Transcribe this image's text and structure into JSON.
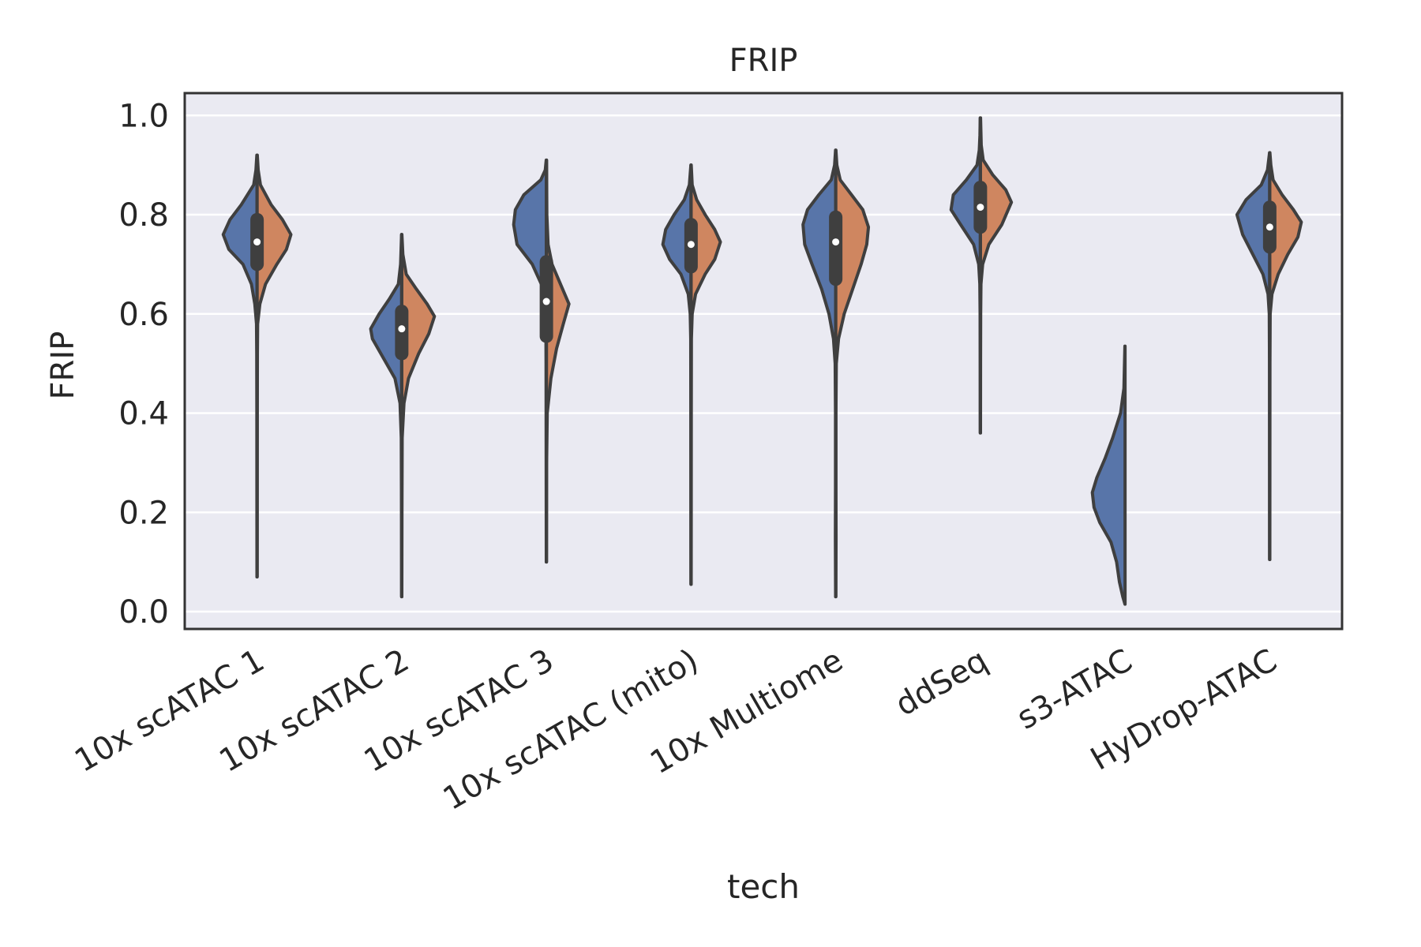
{
  "chart_data": {
    "type": "violin",
    "title": "FRIP",
    "xlabel": "tech",
    "ylabel": "FRIP",
    "ylim": [
      -0.035,
      1.045
    ],
    "yticks": [
      0.0,
      0.2,
      0.4,
      0.6,
      0.8,
      1.0
    ],
    "grid": "horizontal",
    "split": true,
    "categories": [
      "10x scATAC 1",
      "10x scATAC 2",
      "10x scATAC 3",
      "10x scATAC (mito)",
      "10x Multiome",
      "ddSeq",
      "s3-ATAC",
      "HyDrop-ATAC"
    ],
    "colors": {
      "left": "#5875a9",
      "right": "#cf8660",
      "outline": "#3f3f3f",
      "box": "#3f3f3f",
      "median": "#ffffff",
      "panel": "#eaeaf2",
      "grid": "#ffffff"
    },
    "violins": [
      {
        "category": "10x scATAC 1",
        "min": 0.07,
        "max": 0.92,
        "q1": 0.7,
        "median": 0.745,
        "q3": 0.79,
        "left": [
          [
            0.07,
            0.002
          ],
          [
            0.2,
            0.003
          ],
          [
            0.4,
            0.004
          ],
          [
            0.52,
            0.006
          ],
          [
            0.58,
            0.01
          ],
          [
            0.62,
            0.04
          ],
          [
            0.66,
            0.1
          ],
          [
            0.7,
            0.25
          ],
          [
            0.73,
            0.5
          ],
          [
            0.76,
            0.6
          ],
          [
            0.79,
            0.48
          ],
          [
            0.82,
            0.28
          ],
          [
            0.86,
            0.06
          ],
          [
            0.89,
            0.02
          ],
          [
            0.92,
            0.004
          ]
        ],
        "right": [
          [
            0.07,
            0.002
          ],
          [
            0.2,
            0.003
          ],
          [
            0.4,
            0.004
          ],
          [
            0.52,
            0.006
          ],
          [
            0.58,
            0.01
          ],
          [
            0.62,
            0.05
          ],
          [
            0.66,
            0.15
          ],
          [
            0.7,
            0.35
          ],
          [
            0.73,
            0.52
          ],
          [
            0.76,
            0.6
          ],
          [
            0.79,
            0.45
          ],
          [
            0.82,
            0.25
          ],
          [
            0.86,
            0.06
          ],
          [
            0.89,
            0.02
          ],
          [
            0.92,
            0.004
          ]
        ]
      },
      {
        "category": "10x scATAC 2",
        "min": 0.03,
        "max": 0.76,
        "q1": 0.52,
        "median": 0.57,
        "q3": 0.605,
        "left": [
          [
            0.03,
            0.002
          ],
          [
            0.2,
            0.004
          ],
          [
            0.35,
            0.008
          ],
          [
            0.42,
            0.03
          ],
          [
            0.47,
            0.12
          ],
          [
            0.51,
            0.32
          ],
          [
            0.55,
            0.52
          ],
          [
            0.57,
            0.55
          ],
          [
            0.6,
            0.4
          ],
          [
            0.63,
            0.22
          ],
          [
            0.66,
            0.06
          ],
          [
            0.7,
            0.02
          ],
          [
            0.76,
            0.003
          ]
        ],
        "right": [
          [
            0.03,
            0.002
          ],
          [
            0.2,
            0.004
          ],
          [
            0.35,
            0.008
          ],
          [
            0.42,
            0.04
          ],
          [
            0.47,
            0.12
          ],
          [
            0.52,
            0.3
          ],
          [
            0.56,
            0.48
          ],
          [
            0.595,
            0.58
          ],
          [
            0.62,
            0.45
          ],
          [
            0.65,
            0.26
          ],
          [
            0.68,
            0.08
          ],
          [
            0.72,
            0.02
          ],
          [
            0.76,
            0.003
          ]
        ]
      },
      {
        "category": "10x scATAC 3",
        "min": 0.1,
        "max": 0.91,
        "q1": 0.555,
        "median": 0.625,
        "q3": 0.705,
        "left": [
          [
            0.1,
            0.002
          ],
          [
            0.3,
            0.004
          ],
          [
            0.5,
            0.006
          ],
          [
            0.6,
            0.01
          ],
          [
            0.65,
            0.05
          ],
          [
            0.7,
            0.25
          ],
          [
            0.74,
            0.52
          ],
          [
            0.78,
            0.58
          ],
          [
            0.81,
            0.55
          ],
          [
            0.84,
            0.4
          ],
          [
            0.87,
            0.1
          ],
          [
            0.89,
            0.02
          ],
          [
            0.91,
            0.003
          ]
        ],
        "right": [
          [
            0.1,
            0.002
          ],
          [
            0.3,
            0.004
          ],
          [
            0.4,
            0.015
          ],
          [
            0.47,
            0.08
          ],
          [
            0.53,
            0.18
          ],
          [
            0.58,
            0.3
          ],
          [
            0.62,
            0.4
          ],
          [
            0.66,
            0.25
          ],
          [
            0.7,
            0.1
          ],
          [
            0.74,
            0.03
          ],
          [
            0.8,
            0.008
          ],
          [
            0.91,
            0.003
          ]
        ]
      },
      {
        "category": "10x scATAC (mito)",
        "min": 0.055,
        "max": 0.9,
        "q1": 0.695,
        "median": 0.74,
        "q3": 0.78,
        "left": [
          [
            0.055,
            0.002
          ],
          [
            0.2,
            0.003
          ],
          [
            0.4,
            0.004
          ],
          [
            0.55,
            0.006
          ],
          [
            0.6,
            0.015
          ],
          [
            0.64,
            0.05
          ],
          [
            0.68,
            0.18
          ],
          [
            0.71,
            0.38
          ],
          [
            0.74,
            0.5
          ],
          [
            0.77,
            0.45
          ],
          [
            0.8,
            0.3
          ],
          [
            0.83,
            0.12
          ],
          [
            0.86,
            0.03
          ],
          [
            0.9,
            0.003
          ]
        ],
        "right": [
          [
            0.055,
            0.002
          ],
          [
            0.2,
            0.003
          ],
          [
            0.4,
            0.004
          ],
          [
            0.55,
            0.006
          ],
          [
            0.6,
            0.02
          ],
          [
            0.64,
            0.08
          ],
          [
            0.68,
            0.25
          ],
          [
            0.71,
            0.42
          ],
          [
            0.745,
            0.52
          ],
          [
            0.77,
            0.42
          ],
          [
            0.8,
            0.25
          ],
          [
            0.83,
            0.1
          ],
          [
            0.86,
            0.02
          ],
          [
            0.9,
            0.003
          ]
        ]
      },
      {
        "category": "10x Multiome",
        "min": 0.03,
        "max": 0.93,
        "q1": 0.67,
        "median": 0.745,
        "q3": 0.795,
        "left": [
          [
            0.03,
            0.002
          ],
          [
            0.15,
            0.006
          ],
          [
            0.25,
            0.004
          ],
          [
            0.4,
            0.004
          ],
          [
            0.5,
            0.01
          ],
          [
            0.55,
            0.04
          ],
          [
            0.6,
            0.12
          ],
          [
            0.65,
            0.25
          ],
          [
            0.7,
            0.42
          ],
          [
            0.74,
            0.55
          ],
          [
            0.78,
            0.58
          ],
          [
            0.81,
            0.5
          ],
          [
            0.84,
            0.3
          ],
          [
            0.87,
            0.08
          ],
          [
            0.9,
            0.02
          ],
          [
            0.93,
            0.003
          ]
        ],
        "right": [
          [
            0.03,
            0.002
          ],
          [
            0.15,
            0.006
          ],
          [
            0.25,
            0.004
          ],
          [
            0.4,
            0.004
          ],
          [
            0.5,
            0.01
          ],
          [
            0.55,
            0.05
          ],
          [
            0.6,
            0.15
          ],
          [
            0.65,
            0.3
          ],
          [
            0.7,
            0.45
          ],
          [
            0.74,
            0.55
          ],
          [
            0.775,
            0.58
          ],
          [
            0.81,
            0.48
          ],
          [
            0.84,
            0.28
          ],
          [
            0.87,
            0.08
          ],
          [
            0.9,
            0.02
          ],
          [
            0.93,
            0.003
          ]
        ]
      },
      {
        "category": "ddSeq",
        "min": 0.36,
        "max": 0.995,
        "q1": 0.775,
        "median": 0.815,
        "q3": 0.855,
        "left": [
          [
            0.36,
            0.002
          ],
          [
            0.5,
            0.003
          ],
          [
            0.6,
            0.005
          ],
          [
            0.66,
            0.01
          ],
          [
            0.7,
            0.03
          ],
          [
            0.74,
            0.12
          ],
          [
            0.78,
            0.35
          ],
          [
            0.81,
            0.52
          ],
          [
            0.84,
            0.48
          ],
          [
            0.87,
            0.25
          ],
          [
            0.9,
            0.06
          ],
          [
            0.93,
            0.02
          ],
          [
            0.96,
            0.008
          ],
          [
            0.995,
            0.003
          ]
        ],
        "right": [
          [
            0.36,
            0.002
          ],
          [
            0.5,
            0.003
          ],
          [
            0.6,
            0.005
          ],
          [
            0.66,
            0.01
          ],
          [
            0.7,
            0.04
          ],
          [
            0.74,
            0.15
          ],
          [
            0.78,
            0.38
          ],
          [
            0.825,
            0.55
          ],
          [
            0.85,
            0.45
          ],
          [
            0.88,
            0.22
          ],
          [
            0.91,
            0.05
          ],
          [
            0.94,
            0.015
          ],
          [
            0.995,
            0.003
          ]
        ]
      },
      {
        "category": "s3-ATAC",
        "min": 0.015,
        "max": 0.535,
        "q1": null,
        "median": null,
        "q3": null,
        "left": [
          [
            0.015,
            0.002
          ],
          [
            0.03,
            0.04
          ],
          [
            0.06,
            0.1
          ],
          [
            0.1,
            0.15
          ],
          [
            0.14,
            0.25
          ],
          [
            0.18,
            0.45
          ],
          [
            0.21,
            0.55
          ],
          [
            0.24,
            0.58
          ],
          [
            0.27,
            0.5
          ],
          [
            0.31,
            0.35
          ],
          [
            0.35,
            0.22
          ],
          [
            0.4,
            0.08
          ],
          [
            0.45,
            0.02
          ],
          [
            0.535,
            0.003
          ]
        ],
        "right": []
      },
      {
        "category": "HyDrop-ATAC",
        "min": 0.105,
        "max": 0.925,
        "q1": 0.735,
        "median": 0.775,
        "q3": 0.815,
        "left": [
          [
            0.105,
            0.002
          ],
          [
            0.3,
            0.003
          ],
          [
            0.5,
            0.004
          ],
          [
            0.6,
            0.008
          ],
          [
            0.64,
            0.03
          ],
          [
            0.68,
            0.12
          ],
          [
            0.72,
            0.3
          ],
          [
            0.76,
            0.48
          ],
          [
            0.8,
            0.58
          ],
          [
            0.83,
            0.42
          ],
          [
            0.86,
            0.15
          ],
          [
            0.89,
            0.04
          ],
          [
            0.925,
            0.003
          ]
        ],
        "right": [
          [
            0.105,
            0.002
          ],
          [
            0.3,
            0.003
          ],
          [
            0.5,
            0.004
          ],
          [
            0.6,
            0.008
          ],
          [
            0.64,
            0.04
          ],
          [
            0.68,
            0.15
          ],
          [
            0.72,
            0.32
          ],
          [
            0.755,
            0.5
          ],
          [
            0.785,
            0.56
          ],
          [
            0.81,
            0.42
          ],
          [
            0.84,
            0.22
          ],
          [
            0.87,
            0.06
          ],
          [
            0.9,
            0.02
          ],
          [
            0.925,
            0.003
          ]
        ]
      }
    ]
  }
}
